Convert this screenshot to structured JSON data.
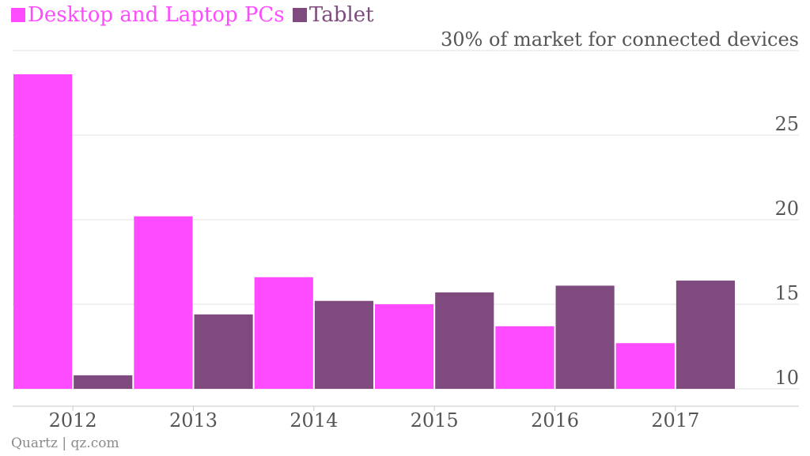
{
  "chart_data": {
    "type": "bar",
    "title": "30% of market for connected devices",
    "categories": [
      "2012",
      "2013",
      "2014",
      "2015",
      "2016",
      "2017"
    ],
    "series": [
      {
        "name": "Desktop and Laptop PCs",
        "color": "#ff4bff",
        "values": [
          28.6,
          20.2,
          16.6,
          15.0,
          13.7,
          12.7
        ]
      },
      {
        "name": "Tablet",
        "color": "#7f4b7f",
        "values": [
          10.8,
          14.4,
          15.2,
          15.7,
          16.1,
          16.4
        ]
      }
    ],
    "ylim": [
      10,
      30
    ],
    "yticks": [
      10,
      15,
      20,
      25
    ],
    "xlabel": "",
    "ylabel": "",
    "legend_position": "top-left",
    "grid": true
  },
  "source": "Quartz | qz.com"
}
